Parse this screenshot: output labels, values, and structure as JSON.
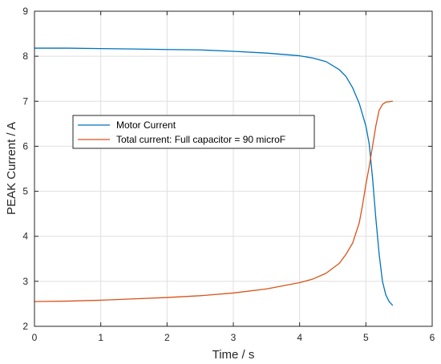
{
  "chart_data": {
    "type": "line",
    "title": "",
    "xlabel": "Time / s",
    "ylabel": "PEAK Current / A",
    "xlim": [
      0,
      6
    ],
    "ylim": [
      2,
      9
    ],
    "xticks": [
      "0",
      "1",
      "2",
      "3",
      "4",
      "5",
      "6"
    ],
    "yticks": [
      "2",
      "3",
      "4",
      "5",
      "6",
      "7",
      "8",
      "9"
    ],
    "grid": true,
    "legend_position": "center-left",
    "series": [
      {
        "name": "Motor Current",
        "color": "#0072BD",
        "x": [
          0,
          0.5,
          1,
          1.5,
          2,
          2.5,
          3,
          3.5,
          4,
          4.2,
          4.4,
          4.6,
          4.7,
          4.8,
          4.9,
          5.0,
          5.05,
          5.1,
          5.15,
          5.2,
          5.25,
          5.3,
          5.35,
          5.4
        ],
        "y": [
          8.18,
          8.18,
          8.17,
          8.16,
          8.15,
          8.14,
          8.11,
          8.07,
          8.01,
          7.96,
          7.88,
          7.7,
          7.55,
          7.3,
          6.95,
          6.45,
          6.05,
          5.3,
          4.4,
          3.6,
          3.0,
          2.7,
          2.55,
          2.47
        ]
      },
      {
        "name": "Total current: Full capacitor = 90 microF",
        "color": "#D95319",
        "x": [
          0,
          0.5,
          1,
          1.5,
          2,
          2.5,
          3,
          3.5,
          4,
          4.2,
          4.4,
          4.6,
          4.7,
          4.8,
          4.9,
          4.95,
          5.0,
          5.05,
          5.1,
          5.15,
          5.2,
          5.25,
          5.3,
          5.4
        ],
        "y": [
          2.55,
          2.56,
          2.58,
          2.61,
          2.64,
          2.68,
          2.74,
          2.83,
          2.97,
          3.05,
          3.18,
          3.4,
          3.6,
          3.85,
          4.3,
          4.7,
          5.15,
          5.55,
          6.0,
          6.45,
          6.8,
          6.93,
          6.98,
          7.0
        ]
      }
    ]
  }
}
